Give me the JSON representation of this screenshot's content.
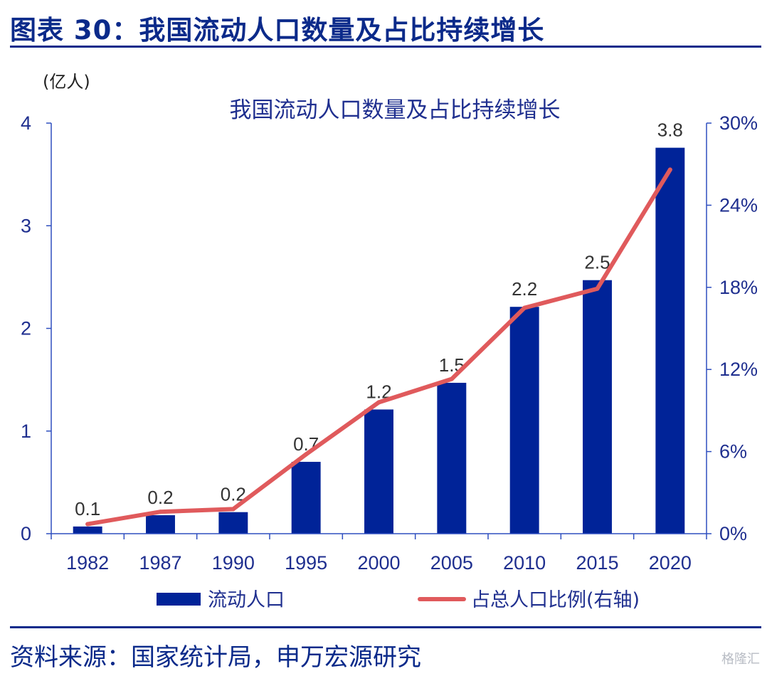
{
  "figure_title": "图表 30：我国流动人口数量及占比持续增长",
  "source": "资料来源：国家统计局，申万宏源研究",
  "watermark": "格隆汇",
  "chart_data": {
    "type": "bar",
    "title": "我国流动人口数量及占比持续增长",
    "y_unit": "(亿人)",
    "categories": [
      "1982",
      "1987",
      "1990",
      "1995",
      "2000",
      "2005",
      "2010",
      "2015",
      "2020"
    ],
    "series": [
      {
        "name": "流动人口",
        "type": "bar",
        "axis": "left",
        "color": "#002398",
        "values": [
          0.07,
          0.18,
          0.21,
          0.7,
          1.21,
          1.47,
          2.21,
          2.47,
          3.76
        ],
        "labels": [
          "0.1",
          "0.2",
          "0.2",
          "0.7",
          "1.2",
          "1.5",
          "2.2",
          "2.5",
          "3.8"
        ]
      },
      {
        "name": "占总人口比例(右轴)",
        "type": "line",
        "axis": "right",
        "color": "#e05a5c",
        "values": [
          0.7,
          1.6,
          1.8,
          5.8,
          9.6,
          11.3,
          16.5,
          17.9,
          26.6
        ]
      }
    ],
    "y_left": {
      "min": 0,
      "max": 4,
      "ticks": [
        "0",
        "1",
        "2",
        "3",
        "4"
      ]
    },
    "y_right": {
      "min": 0,
      "max": 30,
      "ticks": [
        "0%",
        "6%",
        "12%",
        "18%",
        "24%",
        "30%"
      ]
    },
    "legend_position": "bottom"
  }
}
